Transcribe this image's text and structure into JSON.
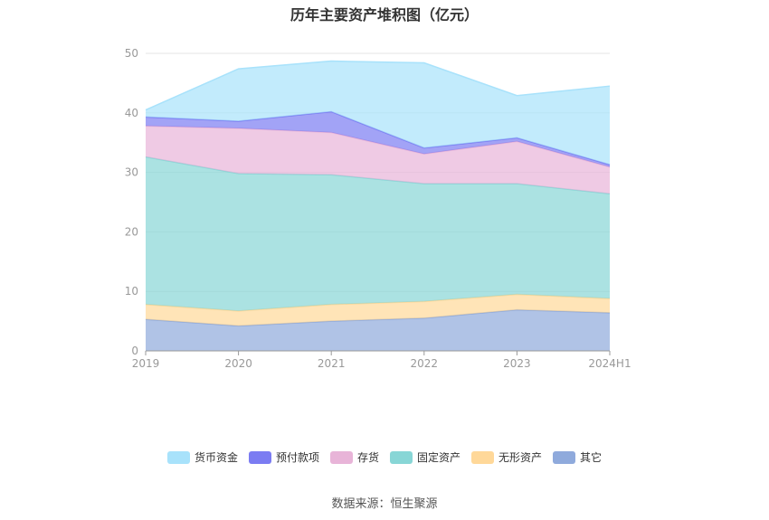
{
  "chart_data": {
    "type": "area",
    "stacked": true,
    "title": "历年主要资产堆积图（亿元）",
    "categories": [
      "2019",
      "2020",
      "2021",
      "2022",
      "2023",
      "2024H1"
    ],
    "ylim": [
      0,
      50
    ],
    "yticks": [
      0,
      10,
      20,
      30,
      40,
      50
    ],
    "grid": true,
    "legend_position": "bottom",
    "series": [
      {
        "name": "其它",
        "color": "#8faadc",
        "values": [
          5.3,
          4.2,
          5.0,
          5.5,
          6.9,
          6.4
        ]
      },
      {
        "name": "无形资产",
        "color": "#ffd899",
        "values": [
          2.5,
          2.5,
          2.8,
          2.8,
          2.6,
          2.4
        ]
      },
      {
        "name": "固定资产",
        "color": "#88d6d6",
        "values": [
          24.8,
          23.1,
          21.8,
          19.8,
          18.6,
          17.6
        ]
      },
      {
        "name": "存货",
        "color": "#e8b4d8",
        "values": [
          5.2,
          7.6,
          7.1,
          5.0,
          7.1,
          4.5
        ]
      },
      {
        "name": "预付款项",
        "color": "#7b7cf2",
        "values": [
          1.5,
          1.2,
          3.5,
          1.0,
          0.6,
          0.4
        ]
      },
      {
        "name": "货币资金",
        "color": "#a8e2fb",
        "values": [
          1.2,
          8.8,
          8.5,
          14.3,
          7.1,
          13.2
        ]
      }
    ]
  },
  "legend_order": [
    "货币资金",
    "预付款项",
    "存货",
    "固定资产",
    "无形资产",
    "其它"
  ],
  "source": "数据来源：恒生聚源"
}
